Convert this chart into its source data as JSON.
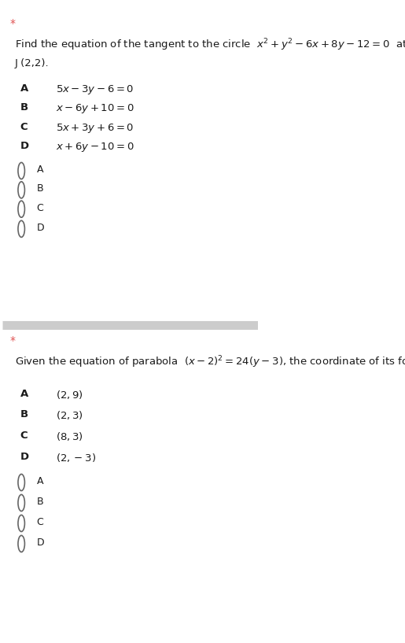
{
  "bg_color": "#ffffff",
  "separator_color": "#cccccc",
  "star_color": "#e05050",
  "text_color": "#1a1a1a",
  "q1": {
    "question_line1": "Find the equation of the tangent to the circle  $x^2+y^2-6x+8y-12=0$  at the point",
    "question_line2": "J (2,2).",
    "options": [
      [
        "A",
        "$5x-3y-6=0$"
      ],
      [
        "B",
        "$x-6y+10=0$"
      ],
      [
        "C",
        "$5x+3y+6=0$"
      ],
      [
        "D",
        "$x+6y-10=0$"
      ]
    ],
    "radio_labels": [
      "A",
      "B",
      "C",
      "D"
    ]
  },
  "q2": {
    "question_line1": "Given the equation of parabola  $(x-2)^2=24(y-3)$, the coordinate of its focus is",
    "options": [
      [
        "A",
        "$(2,9)$"
      ],
      [
        "B",
        "$(2,3)$"
      ],
      [
        "C",
        "$(8,3)$"
      ],
      [
        "D",
        "$(2,-3)$"
      ]
    ],
    "radio_labels": [
      "A",
      "B",
      "C",
      "D"
    ]
  }
}
